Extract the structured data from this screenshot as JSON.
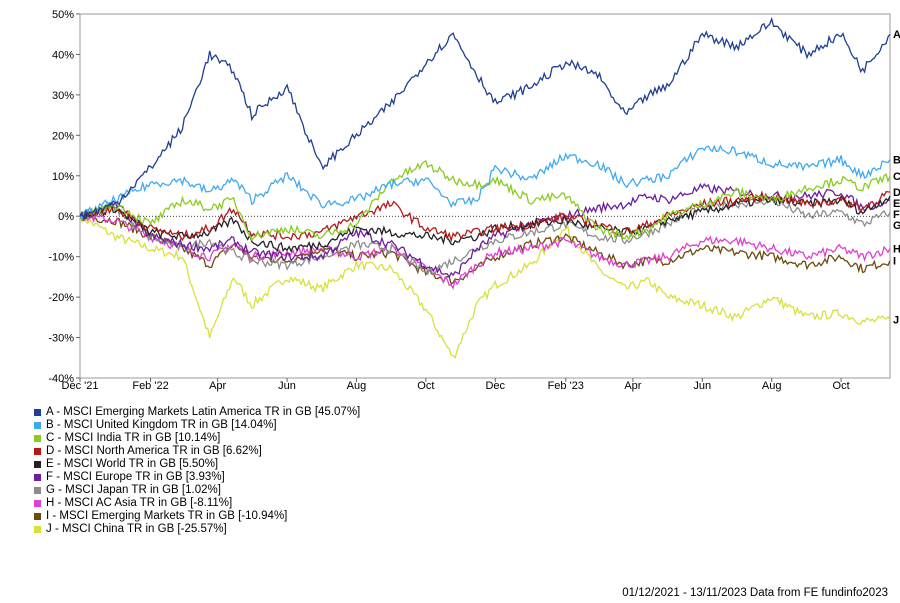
{
  "chart_data": {
    "type": "line",
    "ylim": [
      -40,
      50
    ],
    "y_ticks": [
      -40,
      -30,
      -20,
      -10,
      0,
      10,
      20,
      30,
      40,
      50
    ],
    "y_tick_labels": [
      "-40%",
      "-30%",
      "-20%",
      "-10%",
      "0%",
      "10%",
      "20%",
      "30%",
      "40%",
      "50%"
    ],
    "x_start": "2021-12-01",
    "x_end": "2023-11-13",
    "x_ticks": [
      {
        "date": "2021-12-01",
        "label": "Dec '21"
      },
      {
        "date": "2022-02-01",
        "label": "Feb '22"
      },
      {
        "date": "2022-04-01",
        "label": "Apr"
      },
      {
        "date": "2022-06-01",
        "label": "Jun"
      },
      {
        "date": "2022-08-01",
        "label": "Aug"
      },
      {
        "date": "2022-10-01",
        "label": "Oct"
      },
      {
        "date": "2022-12-01",
        "label": "Dec"
      },
      {
        "date": "2023-02-01",
        "label": "Feb '23"
      },
      {
        "date": "2023-04-01",
        "label": "Apr"
      },
      {
        "date": "2023-06-01",
        "label": "Jun"
      },
      {
        "date": "2023-08-01",
        "label": "Aug"
      },
      {
        "date": "2023-10-01",
        "label": "Oct"
      }
    ],
    "grid": false,
    "zero_line": "dotted",
    "dates": [
      "2021-12-01",
      "2022-01-01",
      "2022-02-01",
      "2022-03-01",
      "2022-03-25",
      "2022-04-15",
      "2022-05-01",
      "2022-06-01",
      "2022-07-01",
      "2022-08-01",
      "2022-09-01",
      "2022-10-01",
      "2022-10-25",
      "2022-11-15",
      "2022-12-01",
      "2023-01-01",
      "2023-02-01",
      "2023-03-01",
      "2023-03-25",
      "2023-04-15",
      "2023-05-01",
      "2023-06-01",
      "2023-07-01",
      "2023-08-01",
      "2023-09-01",
      "2023-10-01",
      "2023-10-20",
      "2023-11-13"
    ],
    "series": [
      {
        "key": "A",
        "name": "A - MSCI Emerging Markets Latin America TR in GB [45.07%]",
        "color": "#1f3f93",
        "values": [
          0,
          3,
          12,
          22,
          40,
          36,
          25,
          32,
          12,
          20,
          28,
          38,
          45,
          35,
          28,
          32,
          38,
          35,
          25,
          30,
          32,
          45,
          42,
          48,
          40,
          45,
          36,
          45
        ]
      },
      {
        "key": "B",
        "name": "B - MSCI United Kingdom TR in GB [14.04%]",
        "color": "#3fa9f0",
        "values": [
          0,
          4,
          8,
          9,
          6,
          9,
          4,
          10,
          3,
          4,
          8,
          9,
          3,
          4,
          12,
          9,
          15,
          13,
          8,
          9,
          10,
          17,
          16,
          13,
          12,
          14,
          10,
          14
        ]
      },
      {
        "key": "C",
        "name": "C - MSCI India TR in GB [10.14%]",
        "color": "#88cc1f",
        "values": [
          0,
          3,
          -2,
          4,
          2,
          4,
          -5,
          -3,
          -5,
          -2,
          9,
          13,
          9,
          8,
          9,
          4,
          5,
          -3,
          -5,
          -3,
          0,
          3,
          6,
          4,
          7,
          9,
          7,
          10
        ]
      },
      {
        "key": "D",
        "name": "D - MSCI North America TR in GB [6.62%]",
        "color": "#b21a1a",
        "values": [
          0,
          2,
          -3,
          -5,
          -3,
          2,
          -4,
          -5,
          -4,
          0,
          3,
          -3,
          -5,
          -4,
          -3,
          -2,
          0,
          -2,
          -4,
          -2,
          0,
          3,
          4,
          5,
          3,
          4,
          2,
          6
        ]
      },
      {
        "key": "E",
        "name": "E - MSCI World TR in GB [5.50%]",
        "color": "#222222",
        "values": [
          0,
          2,
          -4,
          -5,
          -4,
          -1,
          -6,
          -8,
          -7,
          -3,
          -4,
          -5,
          -6,
          -5,
          -3,
          -2,
          -1,
          -3,
          -4,
          -3,
          -1,
          1,
          3,
          4,
          3,
          4,
          1,
          5
        ]
      },
      {
        "key": "F",
        "name": "F - MSCI Europe TR in GB [3.93%]",
        "color": "#6a1fa0",
        "values": [
          0,
          3,
          -5,
          -7,
          -8,
          -6,
          -9,
          -10,
          -10,
          -4,
          -7,
          -12,
          -15,
          -8,
          -5,
          -2,
          0,
          2,
          3,
          5,
          4,
          7,
          6,
          5,
          5,
          6,
          2,
          4
        ]
      },
      {
        "key": "G",
        "name": "G - MSCI Japan TR in GB [1.02%]",
        "color": "#8c8c8c",
        "values": [
          0,
          2,
          -5,
          -8,
          -6,
          -9,
          -11,
          -12,
          -10,
          -7,
          -8,
          -14,
          -11,
          -8,
          -6,
          -4,
          -2,
          -5,
          -6,
          -4,
          -2,
          2,
          3,
          4,
          0,
          1,
          -2,
          1
        ]
      },
      {
        "key": "H",
        "name": "H - MSCI AC Asia TR in GB [-8.11%]",
        "color": "#e040d0",
        "values": [
          0,
          -1,
          -5,
          -8,
          -10,
          -7,
          -10,
          -9,
          -8,
          -10,
          -8,
          -13,
          -17,
          -12,
          -9,
          -8,
          -6,
          -10,
          -12,
          -11,
          -10,
          -6,
          -6,
          -8,
          -10,
          -8,
          -10,
          -8
        ]
      },
      {
        "key": "I",
        "name": "I - MSCI Emerging Markets TR in GB [-10.94%]",
        "color": "#6b4a0c",
        "values": [
          0,
          -1,
          -5,
          -8,
          -12,
          -7,
          -10,
          -11,
          -8,
          -10,
          -9,
          -14,
          -16,
          -13,
          -10,
          -7,
          -5,
          -9,
          -12,
          -11,
          -11,
          -8,
          -9,
          -10,
          -12,
          -10,
          -13,
          -11
        ]
      },
      {
        "key": "J",
        "name": "J - MSCI China TR in GB [-25.57%]",
        "color": "#d8e03a",
        "values": [
          0,
          -5,
          -8,
          -10,
          -30,
          -15,
          -22,
          -15,
          -18,
          -12,
          -13,
          -23,
          -35,
          -22,
          -17,
          -12,
          -3,
          -13,
          -18,
          -16,
          -20,
          -22,
          -25,
          -20,
          -25,
          -24,
          -26,
          -25.57
        ]
      }
    ]
  },
  "footer": {
    "text": "01/12/2021 - 13/11/2023 Data from FE fundinfo2023"
  }
}
